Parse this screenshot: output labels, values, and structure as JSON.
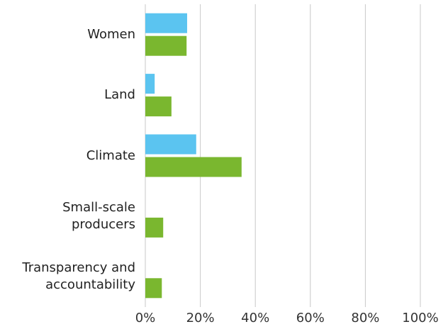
{
  "chart_data": {
    "type": "bar",
    "orientation": "horizontal",
    "categories": [
      "Women",
      "Land",
      "Climate",
      "Small-scale producers",
      "Transparency and accountability"
    ],
    "series": [
      {
        "color": "#5bc4f0",
        "values": [
          15.2,
          3.4,
          18.5,
          0,
          0
        ]
      },
      {
        "color": "#7ab72f",
        "values": [
          15,
          9.5,
          35,
          6.5,
          6
        ]
      }
    ],
    "xlim": [
      0,
      100
    ],
    "xticks": [
      {
        "value": 0,
        "label": "0%"
      },
      {
        "value": 20,
        "label": "20%"
      },
      {
        "value": 40,
        "label": "40%"
      },
      {
        "value": 60,
        "label": "60%"
      },
      {
        "value": 80,
        "label": "80%"
      },
      {
        "value": 100,
        "label": "100%"
      }
    ],
    "grid": true
  }
}
